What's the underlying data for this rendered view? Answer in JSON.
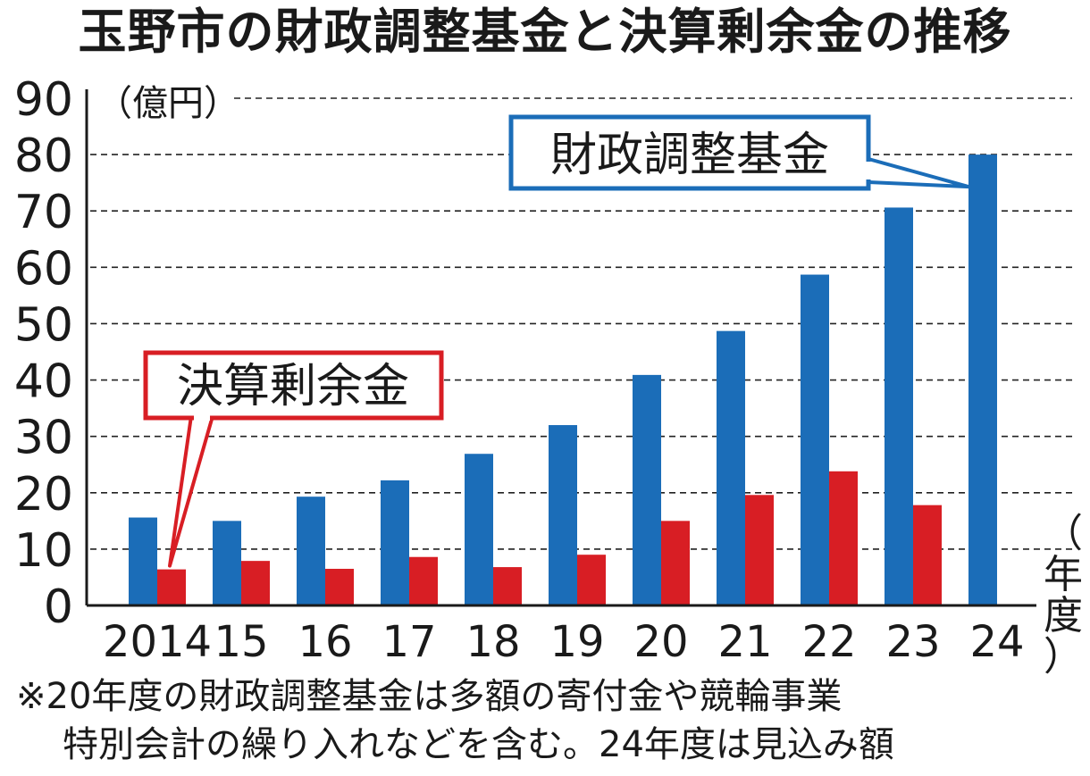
{
  "chart_data": {
    "type": "bar",
    "title": "玉野市の財政調整基金と決算剰余金の推移",
    "ylabel": "（億円）",
    "xlabel": "（年度）",
    "ylim": [
      0,
      90
    ],
    "yticks": [
      "0",
      "10",
      "20",
      "30",
      "40",
      "50",
      "60",
      "70",
      "80",
      "90"
    ],
    "categories": [
      "2014",
      "15",
      "16",
      "17",
      "18",
      "19",
      "20",
      "21",
      "22",
      "23",
      "24"
    ],
    "series": [
      {
        "name": "財政調整基金",
        "color": "#1b6db8",
        "values": [
          15.6,
          15.0,
          19.3,
          22.2,
          26.9,
          32.0,
          40.9,
          48.7,
          58.7,
          70.6,
          80.0
        ]
      },
      {
        "name": "決算剰余金",
        "color": "#d81e24",
        "values": [
          6.4,
          7.9,
          6.5,
          8.6,
          6.8,
          9.0,
          15.0,
          19.6,
          23.8,
          17.8,
          null
        ]
      }
    ],
    "grid": true,
    "notes": [
      "※20年度の財政調整基金は多額の寄付金や競輪事業",
      "特別会計の繰り入れなどを含む。24年度は見込み額"
    ]
  }
}
